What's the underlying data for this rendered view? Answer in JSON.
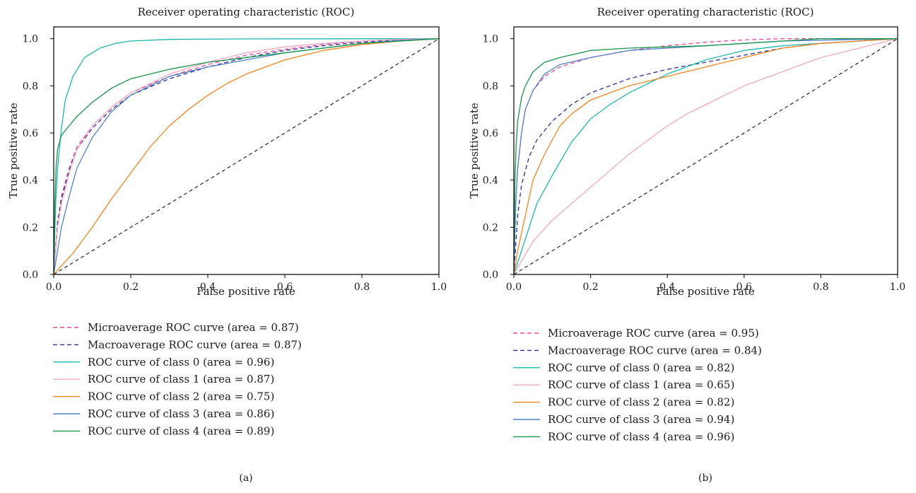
{
  "chart_data": [
    {
      "type": "line",
      "title": "Receiver operating characteristic (ROC)",
      "xlabel": "False positive rate",
      "ylabel": "True positive rate",
      "xlim": [
        0.0,
        1.0
      ],
      "ylim": [
        0.0,
        1.05
      ],
      "xticks": [
        "0.0",
        "0.2",
        "0.4",
        "0.6",
        "0.8",
        "1.0"
      ],
      "yticks": [
        "0.0",
        "0.2",
        "0.4",
        "0.6",
        "0.8",
        "1.0"
      ],
      "grid": false,
      "legend_position": "below",
      "panel_label": "(a)",
      "series": [
        {
          "name": "Microaverage ROC curve (area = 0.87)",
          "color": "#e0489a",
          "dash": true,
          "points": [
            [
              0,
              0
            ],
            [
              0.01,
              0.22
            ],
            [
              0.02,
              0.33
            ],
            [
              0.04,
              0.45
            ],
            [
              0.06,
              0.54
            ],
            [
              0.1,
              0.63
            ],
            [
              0.15,
              0.71
            ],
            [
              0.2,
              0.77
            ],
            [
              0.3,
              0.84
            ],
            [
              0.4,
              0.89
            ],
            [
              0.5,
              0.93
            ],
            [
              0.6,
              0.955
            ],
            [
              0.7,
              0.975
            ],
            [
              0.8,
              0.99
            ],
            [
              0.9,
              0.997
            ],
            [
              1,
              1
            ]
          ]
        },
        {
          "name": "Macroaverage ROC curve (area = 0.87)",
          "color": "#2c2c9a",
          "dash": true,
          "points": [
            [
              0,
              0
            ],
            [
              0.01,
              0.22
            ],
            [
              0.02,
              0.32
            ],
            [
              0.04,
              0.44
            ],
            [
              0.06,
              0.53
            ],
            [
              0.1,
              0.62
            ],
            [
              0.15,
              0.7
            ],
            [
              0.2,
              0.76
            ],
            [
              0.3,
              0.83
            ],
            [
              0.4,
              0.88
            ],
            [
              0.5,
              0.92
            ],
            [
              0.6,
              0.95
            ],
            [
              0.7,
              0.97
            ],
            [
              0.8,
              0.985
            ],
            [
              0.9,
              0.995
            ],
            [
              1,
              1
            ]
          ]
        },
        {
          "name": "ROC curve of class 0 (area = 0.96)",
          "color": "#1db6ad",
          "dash": false,
          "points": [
            [
              0,
              0
            ],
            [
              0.005,
              0.3
            ],
            [
              0.01,
              0.45
            ],
            [
              0.02,
              0.62
            ],
            [
              0.03,
              0.74
            ],
            [
              0.05,
              0.84
            ],
            [
              0.08,
              0.92
            ],
            [
              0.12,
              0.96
            ],
            [
              0.16,
              0.98
            ],
            [
              0.2,
              0.99
            ],
            [
              0.3,
              0.997
            ],
            [
              0.5,
              0.999
            ],
            [
              1,
              1
            ]
          ]
        },
        {
          "name": "ROC curve of class 1 (area = 0.87)",
          "color": "#f0a8c0",
          "dash": false,
          "points": [
            [
              0,
              0
            ],
            [
              0.01,
              0.2
            ],
            [
              0.02,
              0.3
            ],
            [
              0.04,
              0.43
            ],
            [
              0.06,
              0.53
            ],
            [
              0.1,
              0.63
            ],
            [
              0.15,
              0.71
            ],
            [
              0.2,
              0.77
            ],
            [
              0.3,
              0.85
            ],
            [
              0.4,
              0.9
            ],
            [
              0.5,
              0.94
            ],
            [
              0.6,
              0.965
            ],
            [
              0.7,
              0.98
            ],
            [
              0.8,
              0.99
            ],
            [
              0.9,
              0.997
            ],
            [
              1,
              1
            ]
          ]
        },
        {
          "name": "ROC curve of class 2 (area = 0.75)",
          "color": "#f2841e",
          "dash": false,
          "points": [
            [
              0,
              0
            ],
            [
              0.05,
              0.09
            ],
            [
              0.1,
              0.2
            ],
            [
              0.15,
              0.32
            ],
            [
              0.2,
              0.43
            ],
            [
              0.25,
              0.54
            ],
            [
              0.3,
              0.63
            ],
            [
              0.35,
              0.7
            ],
            [
              0.4,
              0.76
            ],
            [
              0.45,
              0.81
            ],
            [
              0.5,
              0.85
            ],
            [
              0.6,
              0.91
            ],
            [
              0.7,
              0.95
            ],
            [
              0.8,
              0.975
            ],
            [
              0.9,
              0.99
            ],
            [
              1,
              1
            ]
          ]
        },
        {
          "name": "ROC curve of class 3 (area = 0.86)",
          "color": "#4f81c7",
          "dash": false,
          "points": [
            [
              0,
              0
            ],
            [
              0.01,
              0.1
            ],
            [
              0.02,
              0.2
            ],
            [
              0.04,
              0.33
            ],
            [
              0.06,
              0.45
            ],
            [
              0.1,
              0.58
            ],
            [
              0.15,
              0.69
            ],
            [
              0.2,
              0.76
            ],
            [
              0.3,
              0.84
            ],
            [
              0.4,
              0.88
            ],
            [
              0.5,
              0.91
            ],
            [
              0.6,
              0.94
            ],
            [
              0.7,
              0.96
            ],
            [
              0.8,
              0.98
            ],
            [
              0.9,
              0.993
            ],
            [
              1,
              1
            ]
          ]
        },
        {
          "name": "ROC curve of class 4 (area = 0.89)",
          "color": "#17954a",
          "dash": false,
          "points": [
            [
              0,
              0
            ],
            [
              0.003,
              0.3
            ],
            [
              0.006,
              0.45
            ],
            [
              0.01,
              0.53
            ],
            [
              0.02,
              0.59
            ],
            [
              0.04,
              0.63
            ],
            [
              0.06,
              0.67
            ],
            [
              0.1,
              0.73
            ],
            [
              0.15,
              0.79
            ],
            [
              0.2,
              0.83
            ],
            [
              0.3,
              0.87
            ],
            [
              0.4,
              0.9
            ],
            [
              0.5,
              0.92
            ],
            [
              0.6,
              0.94
            ],
            [
              0.7,
              0.96
            ],
            [
              0.8,
              0.98
            ],
            [
              0.9,
              0.99
            ],
            [
              1,
              1
            ]
          ]
        }
      ]
    },
    {
      "type": "line",
      "title": "Receiver operating characteristic (ROC)",
      "xlabel": "False positive rate",
      "ylabel": "True positive rate",
      "xlim": [
        0.0,
        1.0
      ],
      "ylim": [
        0.0,
        1.05
      ],
      "xticks": [
        "0.0",
        "0.2",
        "0.4",
        "0.6",
        "0.8",
        "1.0"
      ],
      "yticks": [
        "0.0",
        "0.2",
        "0.4",
        "0.6",
        "0.8",
        "1.0"
      ],
      "grid": false,
      "legend_position": "below",
      "panel_label": "(b)",
      "series": [
        {
          "name": "Microaverage ROC curve (area = 0.95)",
          "color": "#e0489a",
          "dash": true,
          "points": [
            [
              0,
              0
            ],
            [
              0.005,
              0.3
            ],
            [
              0.01,
              0.45
            ],
            [
              0.02,
              0.6
            ],
            [
              0.03,
              0.7
            ],
            [
              0.05,
              0.78
            ],
            [
              0.08,
              0.84
            ],
            [
              0.12,
              0.88
            ],
            [
              0.2,
              0.92
            ],
            [
              0.3,
              0.95
            ],
            [
              0.4,
              0.97
            ],
            [
              0.5,
              0.985
            ],
            [
              0.6,
              0.995
            ],
            [
              0.7,
              1.0
            ],
            [
              1,
              1
            ]
          ]
        },
        {
          "name": "Macroaverage ROC curve (area = 0.84)",
          "color": "#2c2c9a",
          "dash": true,
          "points": [
            [
              0,
              0
            ],
            [
              0.01,
              0.25
            ],
            [
              0.02,
              0.38
            ],
            [
              0.04,
              0.5
            ],
            [
              0.06,
              0.57
            ],
            [
              0.1,
              0.65
            ],
            [
              0.15,
              0.72
            ],
            [
              0.2,
              0.77
            ],
            [
              0.3,
              0.83
            ],
            [
              0.4,
              0.87
            ],
            [
              0.5,
              0.9
            ],
            [
              0.6,
              0.93
            ],
            [
              0.7,
              0.96
            ],
            [
              0.8,
              0.98
            ],
            [
              0.9,
              0.99
            ],
            [
              1,
              1
            ]
          ]
        },
        {
          "name": "ROC curve of class 0 (area = 0.82)",
          "color": "#1db6ad",
          "dash": false,
          "points": [
            [
              0,
              0
            ],
            [
              0.02,
              0.1
            ],
            [
              0.04,
              0.2
            ],
            [
              0.06,
              0.3
            ],
            [
              0.1,
              0.42
            ],
            [
              0.15,
              0.56
            ],
            [
              0.2,
              0.66
            ],
            [
              0.25,
              0.72
            ],
            [
              0.3,
              0.77
            ],
            [
              0.4,
              0.85
            ],
            [
              0.5,
              0.91
            ],
            [
              0.6,
              0.95
            ],
            [
              0.7,
              0.97
            ],
            [
              0.8,
              0.98
            ],
            [
              0.9,
              0.99
            ],
            [
              1,
              1
            ]
          ]
        },
        {
          "name": "ROC curve of class 1 (area = 0.65)",
          "color": "#f0a8c0",
          "dash": false,
          "points": [
            [
              0,
              0
            ],
            [
              0.05,
              0.14
            ],
            [
              0.1,
              0.23
            ],
            [
              0.15,
              0.3
            ],
            [
              0.2,
              0.37
            ],
            [
              0.25,
              0.44
            ],
            [
              0.3,
              0.51
            ],
            [
              0.35,
              0.57
            ],
            [
              0.4,
              0.63
            ],
            [
              0.45,
              0.68
            ],
            [
              0.5,
              0.72
            ],
            [
              0.55,
              0.76
            ],
            [
              0.6,
              0.8
            ],
            [
              0.7,
              0.86
            ],
            [
              0.8,
              0.92
            ],
            [
              0.9,
              0.96
            ],
            [
              1,
              1
            ]
          ]
        },
        {
          "name": "ROC curve of class 2 (area = 0.82)",
          "color": "#f2841e",
          "dash": false,
          "points": [
            [
              0,
              0
            ],
            [
              0.01,
              0.1
            ],
            [
              0.03,
              0.25
            ],
            [
              0.05,
              0.4
            ],
            [
              0.08,
              0.51
            ],
            [
              0.12,
              0.63
            ],
            [
              0.15,
              0.68
            ],
            [
              0.2,
              0.74
            ],
            [
              0.3,
              0.8
            ],
            [
              0.4,
              0.84
            ],
            [
              0.5,
              0.88
            ],
            [
              0.6,
              0.92
            ],
            [
              0.7,
              0.96
            ],
            [
              0.8,
              0.98
            ],
            [
              0.9,
              0.99
            ],
            [
              1,
              1
            ]
          ]
        },
        {
          "name": "ROC curve of class 3 (area = 0.94)",
          "color": "#4f81c7",
          "dash": false,
          "points": [
            [
              0,
              0
            ],
            [
              0.005,
              0.3
            ],
            [
              0.01,
              0.45
            ],
            [
              0.02,
              0.6
            ],
            [
              0.03,
              0.7
            ],
            [
              0.05,
              0.78
            ],
            [
              0.08,
              0.85
            ],
            [
              0.12,
              0.89
            ],
            [
              0.2,
              0.92
            ],
            [
              0.3,
              0.95
            ],
            [
              0.4,
              0.96
            ],
            [
              0.5,
              0.97
            ],
            [
              0.6,
              0.98
            ],
            [
              0.7,
              0.99
            ],
            [
              1,
              1
            ]
          ]
        },
        {
          "name": "ROC curve of class 4 (area = 0.96)",
          "color": "#17954a",
          "dash": false,
          "points": [
            [
              0,
              0
            ],
            [
              0.003,
              0.4
            ],
            [
              0.006,
              0.55
            ],
            [
              0.01,
              0.65
            ],
            [
              0.02,
              0.75
            ],
            [
              0.03,
              0.8
            ],
            [
              0.05,
              0.86
            ],
            [
              0.08,
              0.9
            ],
            [
              0.12,
              0.92
            ],
            [
              0.2,
              0.95
            ],
            [
              0.3,
              0.96
            ],
            [
              0.4,
              0.965
            ],
            [
              0.5,
              0.97
            ],
            [
              0.6,
              0.98
            ],
            [
              0.7,
              0.99
            ],
            [
              0.8,
              1.0
            ],
            [
              1,
              1
            ]
          ]
        }
      ]
    }
  ]
}
